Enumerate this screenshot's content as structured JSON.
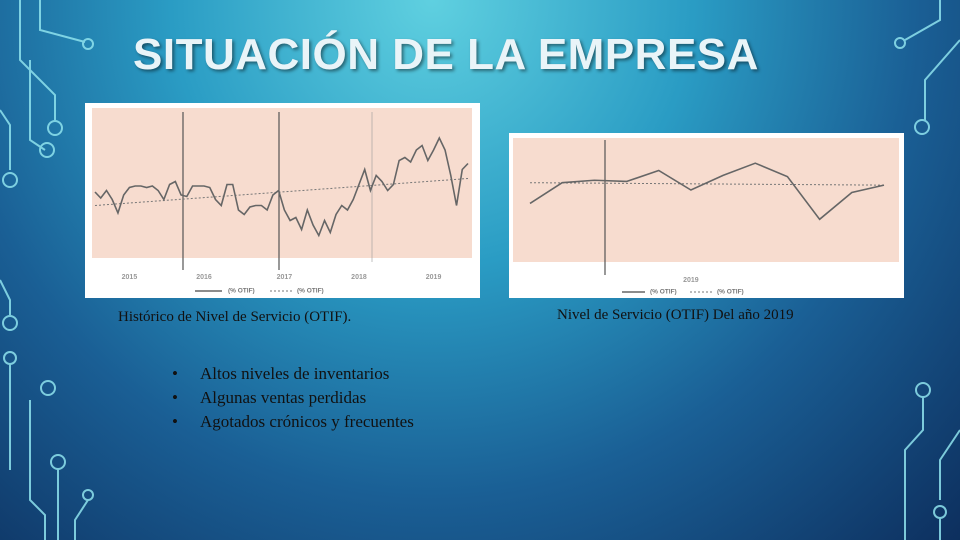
{
  "title": "SITUACIÓN DE LA EMPRESA",
  "chart_data": [
    {
      "type": "line",
      "ylim": [
        0,
        100
      ],
      "categories": [
        null,
        null,
        null,
        null,
        null,
        null,
        "2015",
        null,
        null,
        null,
        null,
        null,
        null,
        null,
        null,
        null,
        null,
        null,
        null,
        "2016",
        null,
        null,
        null,
        null,
        null,
        null,
        null,
        null,
        null,
        null,
        null,
        null,
        null,
        "2017",
        null,
        null,
        null,
        null,
        null,
        null,
        null,
        null,
        null,
        null,
        null,
        null,
        "2018",
        null,
        null,
        null,
        null,
        null,
        null,
        null,
        null,
        null,
        null,
        null,
        null,
        "2019",
        null,
        null,
        null,
        null,
        null,
        null
      ],
      "series": [
        {
          "name": "(% OTIF)",
          "color": "#666666",
          "values": [
            44,
            40,
            45,
            39,
            30,
            42,
            47,
            48,
            48,
            47,
            48,
            45,
            39,
            49,
            51,
            42,
            41,
            48,
            48,
            48,
            47,
            39,
            35,
            49,
            49,
            32,
            29,
            34,
            35,
            35,
            32,
            42,
            45,
            32,
            25,
            27,
            19,
            32,
            22,
            15,
            25,
            17,
            29,
            35,
            32,
            39,
            49,
            59,
            45,
            55,
            51,
            45,
            49,
            65,
            67,
            64,
            72,
            75,
            65,
            72,
            80,
            72,
            55,
            35,
            59,
            63
          ]
        }
      ],
      "trend": {
        "name": "(% OTIF)",
        "start": 35,
        "end": 53
      },
      "caption": "Histórico de Nivel de Servicio (OTIF)."
    },
    {
      "type": "line",
      "ylim": [
        0,
        100
      ],
      "categories": [
        null,
        null,
        null,
        null,
        null,
        "2019",
        null,
        null,
        null,
        null,
        null,
        null
      ],
      "series": [
        {
          "name": "(% OTIF)",
          "color": "#666666",
          "values": [
            48,
            65,
            67,
            66,
            75,
            59,
            71,
            81,
            70,
            35,
            57,
            63
          ]
        }
      ],
      "trend": {
        "name": "(% OTIF)",
        "start": 65,
        "end": 63
      },
      "caption": "Nivel de Servicio (OTIF) Del año 2019"
    }
  ],
  "bullets": [
    "Altos niveles de inventarios",
    "Algunas ventas perdidas",
    "Agotados crónicos y frecuentes"
  ]
}
